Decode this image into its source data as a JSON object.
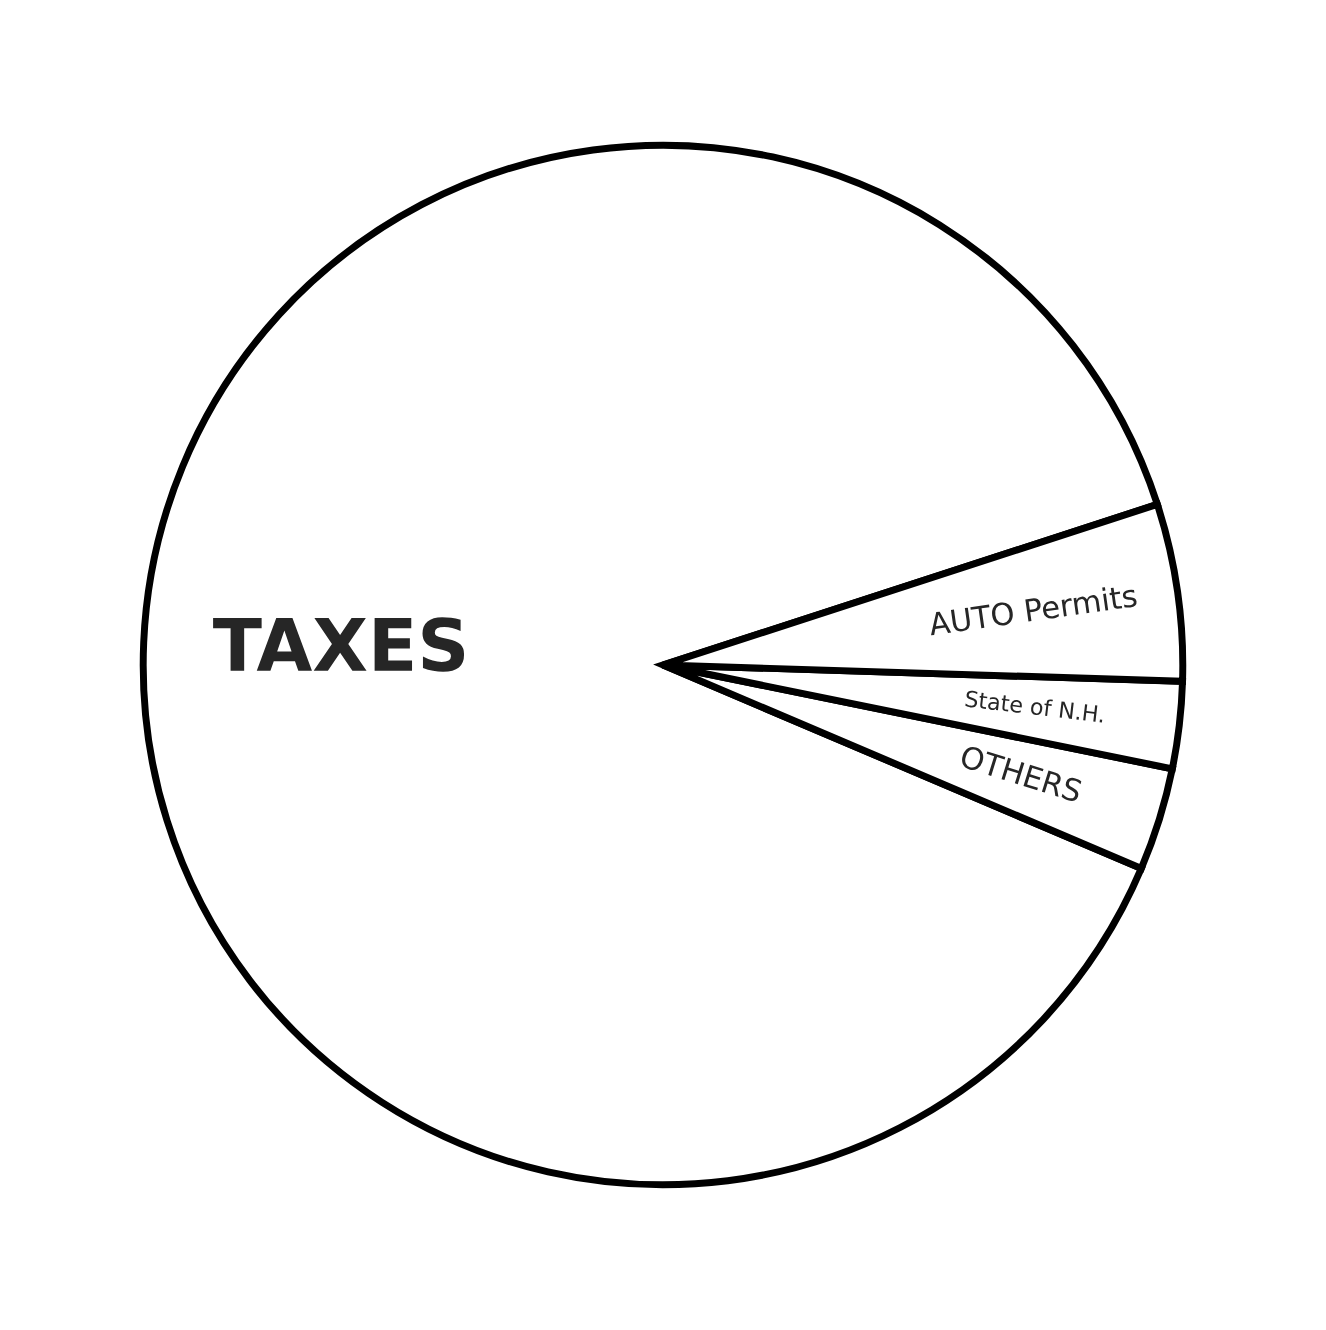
{
  "chart_data": {
    "type": "pie",
    "categories": [
      "TAXES",
      "OTHERS",
      "State of N.H.",
      "AUTO Permits"
    ],
    "values": [
      88.6,
      3.2,
      2.7,
      5.5
    ],
    "colors": [
      "#ffffff",
      "#ffffff",
      "#ffffff",
      "#ffffff"
    ]
  }
}
